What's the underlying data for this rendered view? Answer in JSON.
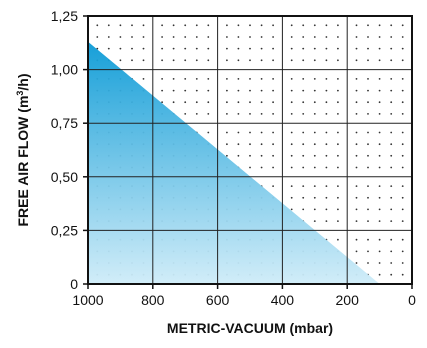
{
  "chart_data": {
    "type": "area",
    "title": "",
    "xlabel": "METRIC-VACUUM (mbar)",
    "ylabel_main": "FREE AIR FLOW (m",
    "ylabel_sup": "3",
    "ylabel_end": "/h)",
    "xlim": [
      1000,
      0
    ],
    "ylim": [
      0,
      1.25
    ],
    "x_ticks": [
      1000,
      800,
      600,
      400,
      200,
      0
    ],
    "x_tick_labels": [
      "1000",
      "800",
      "600",
      "400",
      "200",
      "0"
    ],
    "y_ticks": [
      0,
      0.25,
      0.5,
      0.75,
      1.0,
      1.25
    ],
    "y_tick_labels": [
      "0",
      "0,25",
      "0,50",
      "0,75",
      "1,00",
      "1,25"
    ],
    "grid": true,
    "dotted_background": true,
    "series": [
      {
        "x": [
          1000,
          100
        ],
        "y": [
          1.13,
          0
        ]
      }
    ],
    "fill_color_top": "#0a9ad6",
    "fill_color_bottom": "#cfecf8",
    "grid_color": "#222222"
  }
}
